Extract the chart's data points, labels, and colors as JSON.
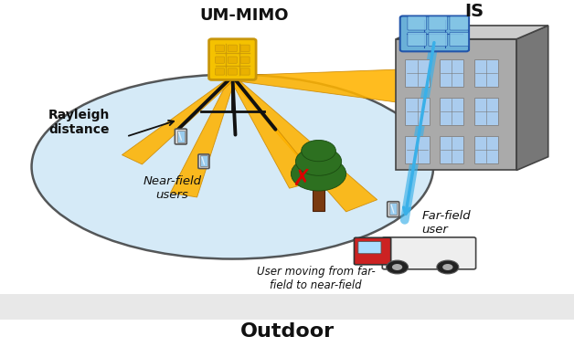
{
  "background_color": "#ffffff",
  "bottom_strip_color": "#e8e8e8",
  "ellipse_color": "#c8e4f5",
  "ellipse_edge_color": "#222222",
  "beam_color": "#FFB300",
  "beam_dark": "#cc8800",
  "beam_alpha": 0.9,
  "tripod_color": "#111111",
  "blue_beam_color": "#3ab0e8",
  "title": "UM-MIMO",
  "bottom_label": "Outdoor",
  "rayleigh_text": "Rayleigh\ndistance",
  "nf_text": "Near-field\nusers",
  "ff_text": "Far-field\nuser",
  "move_text": "User moving from far-\nfield to near-field",
  "is_text": "IS",
  "antenna_color": "#F5C200",
  "antenna_dark": "#c8960a",
  "building_front": "#aaaaaa",
  "building_side": "#777777",
  "building_top": "#bbbbbb",
  "window_color": "#aaccee",
  "is_panel_color": "#6ab0d8",
  "is_panel_dark": "#2255aa",
  "tree_trunk": "#7a3a10",
  "tree_green": "#2d7020",
  "phone_body": "#dddddd",
  "phone_screen": "#99ccee",
  "van_body": "#eeeeee",
  "van_cab": "#cc2222",
  "fig_bg": "#f0f0f0"
}
